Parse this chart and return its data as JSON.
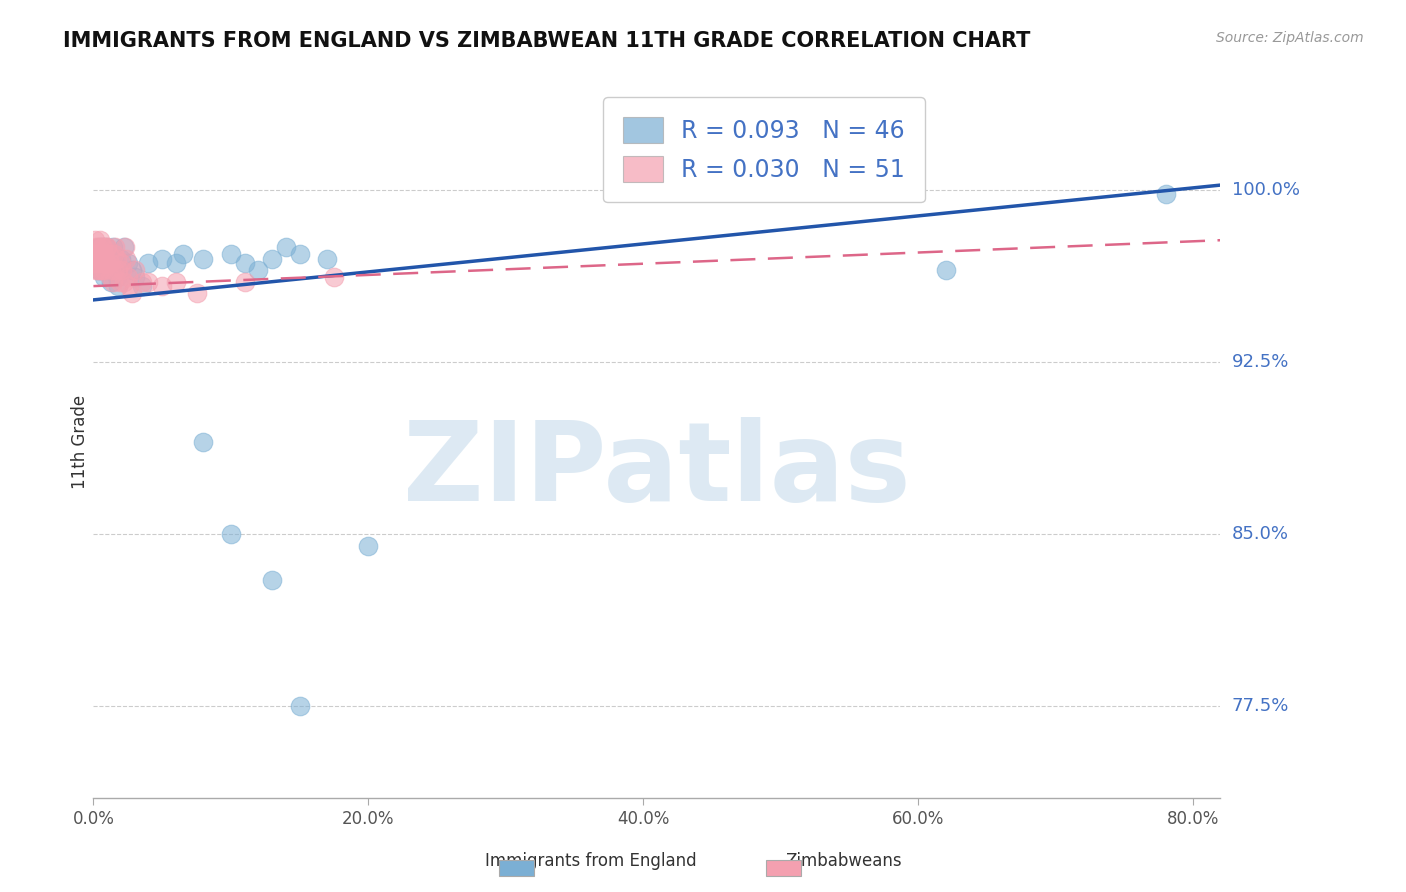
{
  "title": "IMMIGRANTS FROM ENGLAND VS ZIMBABWEAN 11TH GRADE CORRELATION CHART",
  "source_text": "Source: ZipAtlas.com",
  "ylabel": "11th Grade",
  "xlabel_labels": [
    "0.0%",
    "20.0%",
    "40.0%",
    "60.0%",
    "80.0%"
  ],
  "xlabel_ticks": [
    0.0,
    0.2,
    0.4,
    0.6,
    0.8
  ],
  "ytick_labels": [
    "77.5%",
    "85.0%",
    "92.5%",
    "100.0%"
  ],
  "ytick_values": [
    0.775,
    0.85,
    0.925,
    1.0
  ],
  "xlim": [
    0.0,
    0.82
  ],
  "ylim": [
    0.735,
    1.045
  ],
  "watermark": "ZIPatlas",
  "legend_blue_label": "Immigrants from England",
  "legend_pink_label": "Zimbabweans",
  "R_blue": 0.093,
  "N_blue": 46,
  "R_pink": 0.03,
  "N_pink": 51,
  "blue_color": "#7bafd4",
  "pink_color": "#f4a0b0",
  "blue_line_color": "#2255aa",
  "pink_line_color": "#dd6688",
  "background_color": "#ffffff",
  "blue_line_x0": 0.0,
  "blue_line_y0": 0.952,
  "blue_line_x1": 0.82,
  "blue_line_y1": 1.002,
  "pink_line_x0": 0.0,
  "pink_line_y0": 0.958,
  "pink_line_x1": 0.82,
  "pink_line_y1": 0.978,
  "blue_points_x": [
    0.001,
    0.002,
    0.003,
    0.003,
    0.004,
    0.004,
    0.005,
    0.005,
    0.006,
    0.007,
    0.008,
    0.009,
    0.01,
    0.011,
    0.012,
    0.013,
    0.014,
    0.015,
    0.016,
    0.017,
    0.018,
    0.02,
    0.022,
    0.025,
    0.028,
    0.03,
    0.035,
    0.04,
    0.05,
    0.06,
    0.065,
    0.08,
    0.1,
    0.11,
    0.12,
    0.13,
    0.14,
    0.15,
    0.17,
    0.1,
    0.15,
    0.2,
    0.62,
    0.78,
    0.08,
    0.13
  ],
  "blue_points_y": [
    0.974,
    0.97,
    0.972,
    0.968,
    0.975,
    0.965,
    0.97,
    0.966,
    0.975,
    0.968,
    0.962,
    0.975,
    0.972,
    0.968,
    0.965,
    0.96,
    0.975,
    0.97,
    0.968,
    0.962,
    0.958,
    0.97,
    0.975,
    0.968,
    0.965,
    0.962,
    0.958,
    0.968,
    0.97,
    0.968,
    0.972,
    0.97,
    0.972,
    0.968,
    0.965,
    0.97,
    0.975,
    0.972,
    0.97,
    0.85,
    0.775,
    0.845,
    0.965,
    0.998,
    0.89,
    0.83
  ],
  "pink_points_x": [
    0.001,
    0.001,
    0.002,
    0.002,
    0.002,
    0.003,
    0.003,
    0.003,
    0.004,
    0.004,
    0.005,
    0.005,
    0.005,
    0.006,
    0.006,
    0.006,
    0.007,
    0.007,
    0.008,
    0.008,
    0.009,
    0.009,
    0.01,
    0.01,
    0.011,
    0.012,
    0.012,
    0.013,
    0.014,
    0.015,
    0.015,
    0.016,
    0.017,
    0.018,
    0.019,
    0.02,
    0.021,
    0.022,
    0.023,
    0.024,
    0.025,
    0.026,
    0.028,
    0.03,
    0.035,
    0.04,
    0.05,
    0.06,
    0.075,
    0.11,
    0.175
  ],
  "pink_points_y": [
    0.978,
    0.972,
    0.975,
    0.968,
    0.965,
    0.975,
    0.97,
    0.965,
    0.972,
    0.968,
    0.978,
    0.972,
    0.965,
    0.975,
    0.97,
    0.965,
    0.975,
    0.968,
    0.972,
    0.965,
    0.975,
    0.968,
    0.975,
    0.968,
    0.972,
    0.968,
    0.962,
    0.965,
    0.96,
    0.972,
    0.965,
    0.975,
    0.97,
    0.965,
    0.96,
    0.968,
    0.965,
    0.96,
    0.975,
    0.97,
    0.962,
    0.958,
    0.955,
    0.965,
    0.96,
    0.96,
    0.958,
    0.96,
    0.955,
    0.96,
    0.962
  ]
}
